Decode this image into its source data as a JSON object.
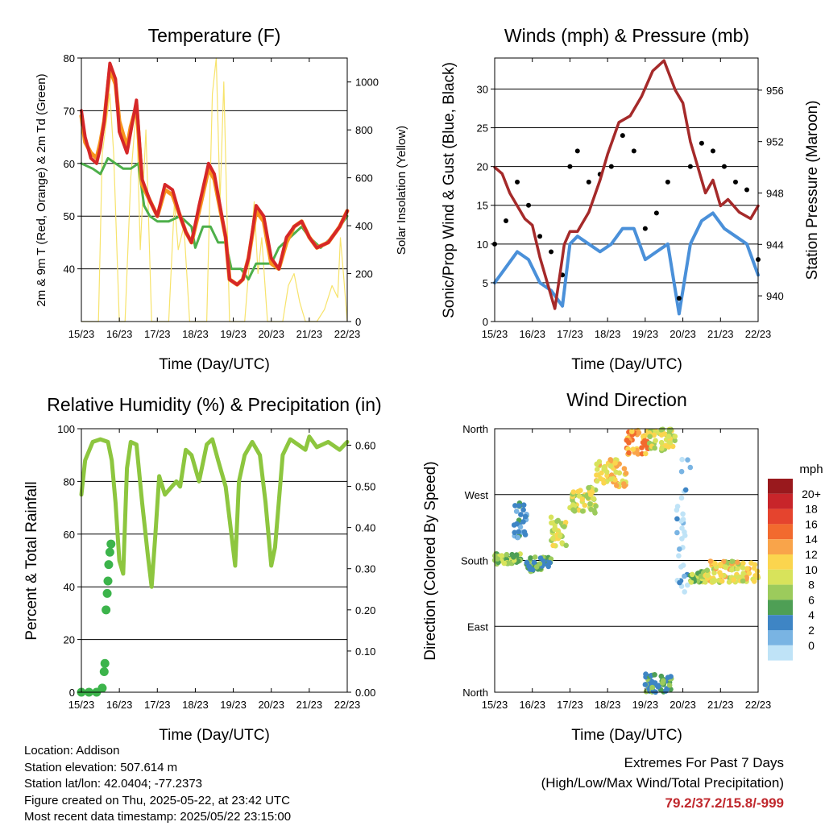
{
  "x_ticks": [
    "15/23",
    "16/23",
    "17/23",
    "18/23",
    "19/23",
    "20/23",
    "21/23",
    "22/23"
  ],
  "colors": {
    "temp2m": "#d62728",
    "temp9m": "#f7941d",
    "dewpoint": "#4daf4a",
    "solar": "#f7e36b",
    "wind": "#4a90d9",
    "gust": "#000000",
    "pressure": "#a52a2a",
    "rh": "#8dc63f",
    "precip": "#3cb44b"
  },
  "chart_data": [
    {
      "type": "line",
      "title": "Temperature (F)",
      "xlabel": "Time (Day/UTC)",
      "ylabel": "2m & 9m T (Red, Orange) & 2m Td (Green)",
      "y2label": "Solar Insolation (Yellow)",
      "ylim": [
        30,
        80
      ],
      "yticks": [
        40,
        50,
        60,
        70,
        80
      ],
      "y2lim": [
        0,
        1100
      ],
      "y2ticks": [
        0,
        200,
        400,
        600,
        800,
        1000
      ],
      "series": [
        {
          "key": "temp2m",
          "x": [
            0,
            0.1,
            0.25,
            0.4,
            0.5,
            0.6,
            0.75,
            0.9,
            1.0,
            1.2,
            1.3,
            1.45,
            1.6,
            1.8,
            2.0,
            2.2,
            2.4,
            2.6,
            2.75,
            2.9,
            3.1,
            3.35,
            3.5,
            3.8,
            3.9,
            4.1,
            4.25,
            4.4,
            4.6,
            4.8,
            5.0,
            5.2,
            5.4,
            5.6,
            5.8,
            6.0,
            6.2,
            6.5,
            6.8,
            7.0
          ],
          "values": [
            70,
            65,
            61,
            60,
            63,
            68,
            79,
            76,
            66,
            62,
            66,
            72,
            57,
            53,
            50,
            56,
            55,
            50,
            47,
            45,
            52,
            60,
            58,
            46,
            38,
            37,
            38,
            42,
            52,
            50,
            42,
            40,
            46,
            48,
            49,
            46,
            44,
            45,
            48,
            51
          ]
        },
        {
          "key": "temp9m",
          "x": [
            0,
            0.1,
            0.25,
            0.4,
            0.5,
            0.6,
            0.75,
            0.9,
            1.0,
            1.2,
            1.3,
            1.45,
            1.6,
            1.8,
            2.0,
            2.2,
            2.4,
            2.6,
            2.75,
            2.9,
            3.1,
            3.35,
            3.5,
            3.8,
            3.9,
            4.1,
            4.25,
            4.4,
            4.6,
            4.8,
            5.0,
            5.2,
            5.4,
            5.6,
            5.8,
            6.0,
            6.2,
            6.5,
            6.8,
            7.0
          ],
          "values": [
            69,
            64,
            62,
            61,
            64,
            68,
            78,
            75,
            68,
            63,
            67,
            71,
            56,
            53,
            50,
            55,
            54,
            50,
            47,
            45,
            51,
            59,
            57,
            46,
            38,
            37,
            38,
            42,
            51,
            49,
            41,
            40,
            45,
            48,
            49,
            46,
            44,
            45,
            48,
            51
          ]
        },
        {
          "key": "dewpoint",
          "x": [
            0,
            0.3,
            0.5,
            0.7,
            0.9,
            1.1,
            1.3,
            1.5,
            1.65,
            1.8,
            2.0,
            2.3,
            2.6,
            2.9,
            3.0,
            3.2,
            3.4,
            3.6,
            3.8,
            3.95,
            4.2,
            4.4,
            4.6,
            4.8,
            5.0,
            5.2,
            5.5,
            5.8,
            6.0,
            6.3,
            6.6,
            7.0
          ],
          "values": [
            60,
            59,
            58,
            61,
            60,
            59,
            59,
            60,
            52,
            50,
            49,
            49,
            50,
            48,
            44,
            48,
            48,
            45,
            45,
            40,
            40,
            38,
            41,
            41,
            41,
            44,
            46,
            48,
            46,
            44,
            46,
            50
          ]
        },
        {
          "key": "solar",
          "x": [
            0,
            0.45,
            0.55,
            0.75,
            0.85,
            1.0,
            1.15,
            1.3,
            1.45,
            1.55,
            1.7,
            1.85,
            2.3,
            2.45,
            2.55,
            2.7,
            2.85,
            3.3,
            3.45,
            3.55,
            3.65,
            3.75,
            3.9,
            4.3,
            4.45,
            4.55,
            4.65,
            4.75,
            4.9,
            5.3,
            5.45,
            5.6,
            5.75,
            5.9,
            6.2,
            6.4,
            6.6,
            6.75,
            6.82,
            6.9,
            7.0
          ],
          "values": [
            0,
            0,
            700,
            950,
            700,
            0,
            0,
            600,
            900,
            300,
            800,
            0,
            0,
            500,
            300,
            400,
            0,
            0,
            950,
            1100,
            500,
            1000,
            0,
            0,
            300,
            500,
            200,
            350,
            0,
            0,
            150,
            200,
            80,
            0,
            0,
            50,
            150,
            100,
            350,
            200,
            0
          ]
        }
      ]
    },
    {
      "type": "line",
      "title": "Winds (mph) & Pressure (mb)",
      "xlabel": "Time (Day/UTC)",
      "ylabel": "Sonic/Prop Wind & Gust (Blue, Black)",
      "y2label": "Station Pressure (Maroon)",
      "ylim": [
        0,
        34
      ],
      "yticks": [
        0,
        5,
        10,
        15,
        20,
        25,
        30
      ],
      "y2lim": [
        938.0,
        958.5
      ],
      "y2ticks": [
        940,
        944,
        948,
        952,
        956
      ],
      "series": [
        {
          "key": "pressure",
          "x": [
            0,
            0.2,
            0.4,
            0.6,
            0.8,
            1.0,
            1.2,
            1.4,
            1.6,
            1.75,
            1.85,
            2.0,
            2.2,
            2.5,
            2.8,
            3.0,
            3.3,
            3.6,
            3.9,
            4.2,
            4.5,
            4.8,
            5.0,
            5.2,
            5.4,
            5.6,
            5.8,
            6.0,
            6.2,
            6.5,
            6.8,
            7.0
          ],
          "values": [
            950,
            949.5,
            948,
            947,
            946,
            945.5,
            943,
            941,
            939,
            942,
            944,
            945,
            945,
            946.5,
            949,
            951,
            953.5,
            954,
            955.5,
            957.5,
            958.3,
            956,
            955,
            952,
            950,
            948,
            949,
            947,
            947.5,
            946.5,
            946,
            947
          ]
        },
        {
          "key": "wind",
          "x": [
            0,
            0.3,
            0.6,
            0.9,
            1.2,
            1.5,
            1.8,
            2.0,
            2.2,
            2.5,
            2.8,
            3.1,
            3.4,
            3.7,
            4.0,
            4.3,
            4.6,
            4.9,
            5.2,
            5.5,
            5.8,
            6.1,
            6.4,
            6.7,
            7.0
          ],
          "values": [
            5,
            7,
            9,
            8,
            5,
            4,
            2,
            10,
            11,
            10,
            9,
            10,
            12,
            12,
            8,
            9,
            10,
            1,
            10,
            13,
            14,
            12,
            11,
            10,
            6
          ]
        },
        {
          "key": "gust",
          "x": [
            0,
            0.3,
            0.6,
            0.9,
            1.2,
            1.5,
            1.8,
            2.0,
            2.2,
            2.5,
            2.8,
            3.1,
            3.4,
            3.7,
            4.0,
            4.3,
            4.6,
            4.9,
            5.2,
            5.5,
            5.8,
            6.1,
            6.4,
            6.7,
            7.0
          ],
          "values": [
            10,
            13,
            18,
            15,
            11,
            9,
            6,
            20,
            22,
            18,
            19,
            20,
            24,
            22,
            12,
            14,
            18,
            3,
            20,
            23,
            22,
            20,
            18,
            17,
            8
          ]
        }
      ]
    },
    {
      "type": "line",
      "title": "Relative Humidity (%) & Precipitation (in)",
      "xlabel": "Time (Day/UTC)",
      "ylabel": "Percent & Total Rainfall",
      "ylim": [
        0,
        100
      ],
      "yticks": [
        0,
        20,
        40,
        60,
        80,
        100
      ],
      "y2lim": [
        0,
        0.64
      ],
      "y2ticks": [
        "0.00",
        "0.10",
        "0.20",
        "0.30",
        "0.40",
        "0.50",
        "0.60"
      ],
      "series": [
        {
          "key": "rh",
          "x": [
            0,
            0.1,
            0.3,
            0.5,
            0.7,
            0.8,
            0.9,
            1.0,
            1.1,
            1.2,
            1.3,
            1.45,
            1.6,
            1.75,
            1.85,
            1.95,
            2.05,
            2.2,
            2.5,
            2.6,
            2.75,
            2.9,
            3.1,
            3.3,
            3.45,
            3.6,
            3.8,
            3.95,
            4.05,
            4.15,
            4.3,
            4.5,
            4.7,
            4.85,
            5.0,
            5.1,
            5.3,
            5.5,
            5.7,
            5.9,
            6.0,
            6.2,
            6.5,
            6.8,
            7.0
          ],
          "values": [
            75,
            88,
            95,
            96,
            95,
            88,
            72,
            50,
            45,
            85,
            95,
            94,
            72,
            52,
            40,
            60,
            82,
            75,
            80,
            78,
            92,
            90,
            80,
            94,
            96,
            88,
            78,
            60,
            48,
            80,
            90,
            95,
            90,
            72,
            48,
            55,
            90,
            96,
            94,
            92,
            97,
            93,
            95,
            92,
            95
          ]
        },
        {
          "key": "precip",
          "x": [
            0,
            0.2,
            0.4,
            0.55,
            0.6,
            0.62,
            0.65,
            0.68,
            0.7,
            0.72,
            0.75,
            0.78
          ],
          "values": [
            0,
            0,
            0,
            0.01,
            0.05,
            0.07,
            0.2,
            0.24,
            0.27,
            0.31,
            0.34,
            0.36
          ]
        }
      ]
    },
    {
      "type": "scatter",
      "title": "Wind Direction",
      "xlabel": "Time (Day/UTC)",
      "ylabel": "Direction (Colored By Speed)",
      "ylim": [
        0,
        360
      ],
      "ytick_labels": [
        "North",
        "East",
        "South",
        "West",
        "North"
      ],
      "legend_title": "mph",
      "legend_labels": [
        "20+",
        "18",
        "16",
        "14",
        "12",
        "10",
        "8",
        "6",
        "4",
        "2",
        "0"
      ],
      "legend_colors": [
        "#99191d",
        "#c8252a",
        "#e5442e",
        "#f26a2e",
        "#f9a44a",
        "#fbd54e",
        "#d8e35b",
        "#9ccb5c",
        "#4e9f55",
        "#3e85c5",
        "#79b4e3",
        "#bfe3f7"
      ],
      "clusters": [
        {
          "x0": 0.0,
          "x1": 0.7,
          "y0": 175,
          "y1": 190,
          "speed": 8
        },
        {
          "x0": 0.5,
          "x1": 0.85,
          "y0": 210,
          "y1": 260,
          "speed": 4
        },
        {
          "x0": 0.85,
          "x1": 1.5,
          "y0": 165,
          "y1": 185,
          "speed": 6
        },
        {
          "x0": 1.5,
          "x1": 1.9,
          "y0": 200,
          "y1": 240,
          "speed": 10
        },
        {
          "x0": 2.0,
          "x1": 2.7,
          "y0": 245,
          "y1": 280,
          "speed": 10
        },
        {
          "x0": 2.7,
          "x1": 3.5,
          "y0": 280,
          "y1": 320,
          "speed": 12
        },
        {
          "x0": 3.5,
          "x1": 4.1,
          "y0": 325,
          "y1": 358,
          "speed": 14
        },
        {
          "x0": 4.1,
          "x1": 4.8,
          "y0": 330,
          "y1": 360,
          "speed": 10
        },
        {
          "x0": 4.0,
          "x1": 4.7,
          "y0": 0,
          "y1": 25,
          "speed": 6
        },
        {
          "x0": 4.8,
          "x1": 5.2,
          "y0": 120,
          "y1": 320,
          "speed": 1
        },
        {
          "x0": 5.2,
          "x1": 5.6,
          "y0": 150,
          "y1": 165,
          "speed": 8
        },
        {
          "x0": 5.6,
          "x1": 7.0,
          "y0": 150,
          "y1": 180,
          "speed": 11
        }
      ]
    }
  ],
  "footer": {
    "location": "Location: Addison",
    "elevation": "Station elevation: 507.614 m",
    "latlon": "Station lat/lon: 42.0404; -77.2373",
    "created": "Figure created on Thu, 2025-05-22, at 23:42 UTC",
    "recent": "Most recent data timestamp: 2025/05/22 23:15:00"
  },
  "extremes": {
    "title": "Extremes For Past 7 Days",
    "subtitle": "(High/Low/Max Wind/Total Precipitation)",
    "values": "79.2/37.2/15.8/-999"
  }
}
